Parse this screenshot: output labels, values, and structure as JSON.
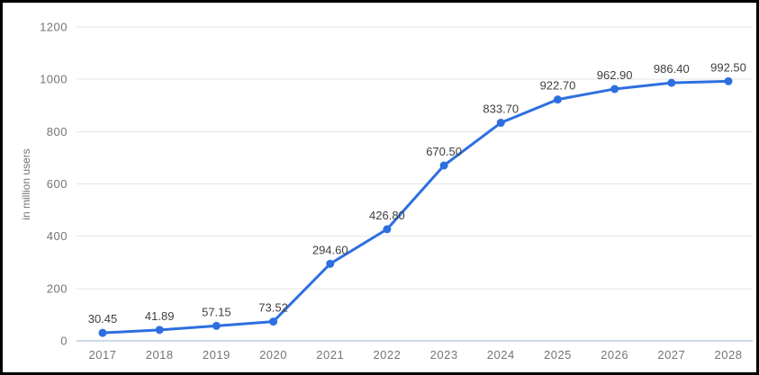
{
  "page": {
    "background": "#ffffff",
    "frame_border_color": "#000000"
  },
  "chart_data": {
    "type": "line",
    "title": "",
    "categories": [
      "2017",
      "2018",
      "2019",
      "2020",
      "2021",
      "2022",
      "2023",
      "2024",
      "2025",
      "2026",
      "2027",
      "2028"
    ],
    "series": [
      {
        "name": "users",
        "values": [
          30.45,
          41.89,
          57.15,
          73.52,
          294.6,
          426.8,
          670.5,
          833.7,
          922.7,
          962.9,
          986.4,
          992.5
        ]
      }
    ],
    "data_labels": [
      "30.45",
      "41.89",
      "57.15",
      "73.52",
      "294.60",
      "426.80",
      "670.50",
      "833.70",
      "922.70",
      "962.90",
      "986.40",
      "992.50"
    ],
    "xlabel": "",
    "ylabel": "in million users",
    "ylim": [
      0,
      1200
    ],
    "yticks": [
      0,
      200,
      400,
      600,
      800,
      1000,
      1200
    ],
    "grid": true,
    "legend_position": "none",
    "marker": "circle",
    "colors": {
      "line": "#2d6fe0",
      "marker": "#2d6fe0",
      "gridline": "#e6e6e6",
      "zero_line": "#ccd7e8",
      "tick_text": "#757575",
      "data_label_text": "#404040",
      "axis_title_text": "#757575",
      "background": "#ffffff"
    }
  }
}
